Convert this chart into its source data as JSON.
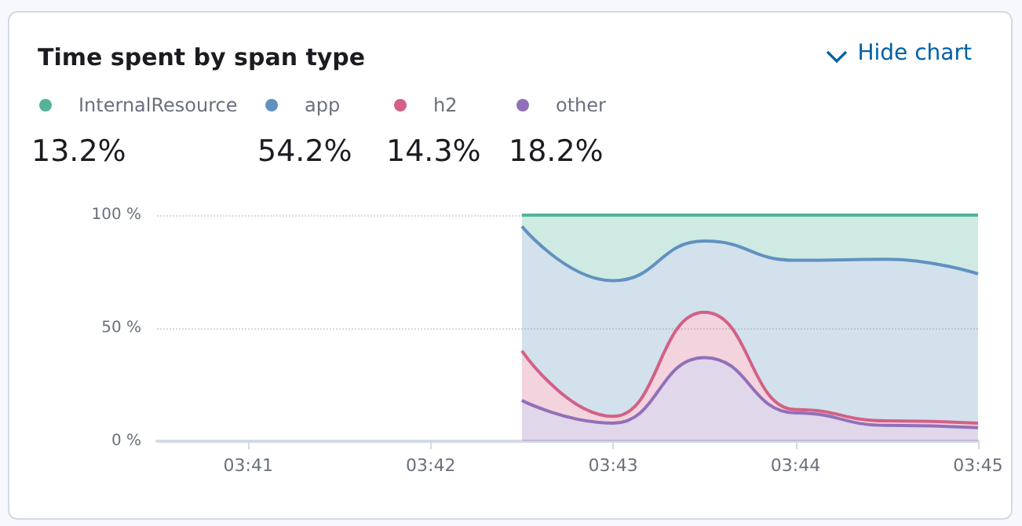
{
  "chart_data": {
    "type": "area",
    "title": "Time spent by span type",
    "stacked": true,
    "x": [
      3.708333,
      3.716667,
      3.725,
      3.733333,
      3.741667,
      3.75
    ],
    "series": [
      {
        "name": "other",
        "color": "#9170b8",
        "values": [
          18,
          8,
          37,
          12.5,
          7,
          6
        ]
      },
      {
        "name": "h2",
        "color": "#d36086",
        "values": [
          22,
          3,
          20,
          1.5,
          2,
          2
        ]
      },
      {
        "name": "app",
        "color": "#6092c0",
        "values": [
          55,
          60,
          31.5,
          66,
          71.5,
          66
        ]
      },
      {
        "name": "InternalResource",
        "color": "#54b399",
        "values": [
          5,
          29,
          11.5,
          20,
          19.5,
          26
        ]
      }
    ],
    "xlim": [
      3.675,
      3.75
    ],
    "xticks": [
      {
        "value": 3.683333,
        "label": "03:41"
      },
      {
        "value": 3.7,
        "label": "03:42"
      },
      {
        "value": 3.716667,
        "label": "03:43"
      },
      {
        "value": 3.733333,
        "label": "03:44"
      },
      {
        "value": 3.75,
        "label": "03:45"
      }
    ],
    "ylim": [
      0,
      100
    ],
    "yticks": [
      {
        "value": 0,
        "label": "0 %"
      },
      {
        "value": 50,
        "label": "50 %"
      },
      {
        "value": 100,
        "label": "100 %"
      }
    ],
    "grid": "y",
    "legend": "top left",
    "marker": "none",
    "line_style": "solid",
    "annotations": [
      "13.2%",
      "54.2%",
      "14.3%",
      "18.2%",
      "Hide chart"
    ]
  }
}
